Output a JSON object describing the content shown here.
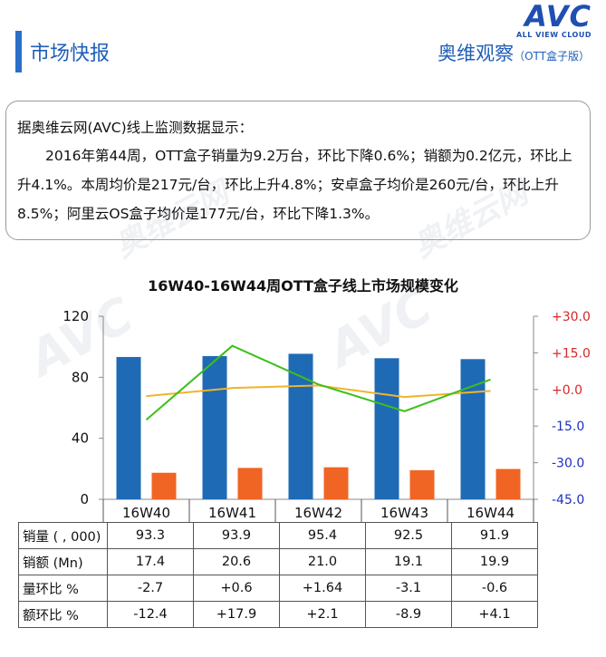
{
  "header": {
    "title": "市场快报",
    "brand_title": "奥维观察",
    "brand_sub": "（OTT盒子版）",
    "logo_text": "AVC",
    "logo_sub": "ALL VIEW CLOUD"
  },
  "summary": {
    "intro": "据奥维云网(AVC)线上监测数据显示：",
    "body": "2016年第44周，OTT盒子销量为9.2万台，环比下降0.6%；销额为0.2亿元，环比上升4.1%。本周均价是217元/台，环比上升4.8%；安卓盒子均价是260元/台，环比上升8.5%；阿里云OS盒子均价是177元/台，环比下降1.3%。"
  },
  "chart_data": {
    "type": "bar",
    "title": "16W40-16W44周OTT盒子线上市场规模变化",
    "categories": [
      "16W40",
      "16W41",
      "16W42",
      "16W43",
      "16W44"
    ],
    "series": [
      {
        "name": "销量 ( , 000)",
        "kind": "bar",
        "axis": "left",
        "color": "#1f6ab5",
        "values": [
          93.3,
          93.9,
          95.4,
          92.5,
          91.9
        ]
      },
      {
        "name": "销额 (Mn)",
        "kind": "bar",
        "axis": "left",
        "color": "#f06424",
        "values": [
          17.4,
          20.6,
          21.0,
          19.1,
          19.9
        ]
      },
      {
        "name": "量环比 %",
        "kind": "line",
        "axis": "right",
        "color": "#f0b429",
        "values": [
          -2.7,
          0.6,
          1.64,
          -3.1,
          -0.6
        ]
      },
      {
        "name": "额环比 %",
        "kind": "line",
        "axis": "right",
        "color": "#3cbf1a",
        "values": [
          -12.4,
          17.9,
          2.1,
          -8.9,
          4.1
        ]
      }
    ],
    "left_axis": {
      "ylim": [
        0,
        120
      ],
      "ticks": [
        "0",
        "40",
        "80",
        "120"
      ],
      "tick_values": [
        0,
        40,
        80,
        120
      ]
    },
    "right_axis": {
      "ylim": [
        -45,
        30
      ],
      "ticks": [
        "-45.0",
        "-30.0",
        "-15.0",
        "+0.0",
        "+15.0",
        "+30.0"
      ],
      "tick_values": [
        -45,
        -30,
        -15,
        0,
        15,
        30
      ],
      "negative_color": "#1f2fbf",
      "positive_color": "#d62828"
    },
    "table": {
      "rows": [
        {
          "label": "销量 ( , 000)",
          "cells": [
            "93.3",
            "93.9",
            "95.4",
            "92.5",
            "91.9"
          ]
        },
        {
          "label": "销额 (Mn)",
          "cells": [
            "17.4",
            "20.6",
            "21.0",
            "19.1",
            "19.9"
          ]
        },
        {
          "label": "量环比 %",
          "cells": [
            "-2.7",
            "+0.6",
            "+1.64",
            "-3.1",
            "-0.6"
          ]
        },
        {
          "label": "额环比 %",
          "cells": [
            "-12.4",
            "+17.9",
            "+2.1",
            "-8.9",
            "+4.1"
          ]
        }
      ]
    },
    "grid": false,
    "legend": "table"
  }
}
